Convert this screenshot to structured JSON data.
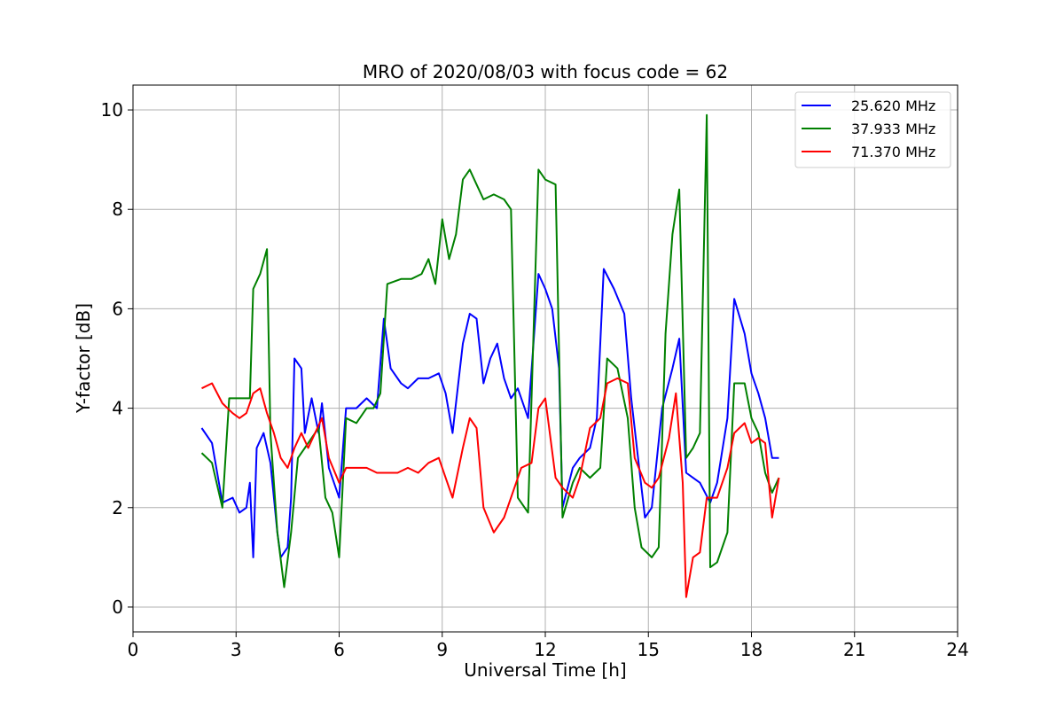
{
  "chart_data": {
    "type": "line",
    "title": "MRO of 2020/08/03 with focus code = 62",
    "xlabel": "Universal Time [h]",
    "ylabel": "Y-factor [dB]",
    "xlim": [
      0,
      24
    ],
    "ylim": [
      -0.5,
      10.5
    ],
    "xticks": [
      0,
      3,
      6,
      9,
      12,
      15,
      18,
      21,
      24
    ],
    "yticks": [
      0,
      2,
      4,
      6,
      8,
      10
    ],
    "grid": true,
    "legend_position": "top-right",
    "series": [
      {
        "name": "25.620 MHz",
        "color": "#0000ff",
        "points": [
          [
            2.0,
            3.6
          ],
          [
            2.3,
            3.3
          ],
          [
            2.6,
            2.1
          ],
          [
            2.9,
            2.2
          ],
          [
            3.1,
            1.9
          ],
          [
            3.3,
            2.0
          ],
          [
            3.4,
            2.5
          ],
          [
            3.5,
            1.0
          ],
          [
            3.6,
            3.2
          ],
          [
            3.8,
            3.5
          ],
          [
            4.0,
            2.9
          ],
          [
            4.2,
            1.5
          ],
          [
            4.3,
            1.0
          ],
          [
            4.5,
            1.2
          ],
          [
            4.6,
            2.2
          ],
          [
            4.7,
            5.0
          ],
          [
            4.9,
            4.8
          ],
          [
            5.0,
            3.5
          ],
          [
            5.2,
            4.2
          ],
          [
            5.4,
            3.5
          ],
          [
            5.5,
            4.1
          ],
          [
            5.7,
            2.8
          ],
          [
            6.0,
            2.2
          ],
          [
            6.2,
            4.0
          ],
          [
            6.5,
            4.0
          ],
          [
            6.8,
            4.2
          ],
          [
            7.1,
            4.0
          ],
          [
            7.3,
            5.8
          ],
          [
            7.5,
            4.8
          ],
          [
            7.8,
            4.5
          ],
          [
            8.0,
            4.4
          ],
          [
            8.3,
            4.6
          ],
          [
            8.6,
            4.6
          ],
          [
            8.9,
            4.7
          ],
          [
            9.1,
            4.3
          ],
          [
            9.3,
            3.5
          ],
          [
            9.6,
            5.3
          ],
          [
            9.8,
            5.9
          ],
          [
            10.0,
            5.8
          ],
          [
            10.2,
            4.5
          ],
          [
            10.4,
            5.0
          ],
          [
            10.6,
            5.3
          ],
          [
            10.8,
            4.6
          ],
          [
            11.0,
            4.2
          ],
          [
            11.2,
            4.4
          ],
          [
            11.5,
            3.8
          ],
          [
            11.8,
            6.7
          ],
          [
            12.0,
            6.4
          ],
          [
            12.2,
            6.0
          ],
          [
            12.4,
            4.8
          ],
          [
            12.5,
            2.0
          ],
          [
            12.8,
            2.8
          ],
          [
            13.0,
            3.0
          ],
          [
            13.3,
            3.2
          ],
          [
            13.5,
            3.8
          ],
          [
            13.7,
            6.8
          ],
          [
            14.0,
            6.4
          ],
          [
            14.3,
            5.9
          ],
          [
            14.5,
            4.2
          ],
          [
            14.7,
            3.0
          ],
          [
            14.9,
            1.8
          ],
          [
            15.1,
            2.0
          ],
          [
            15.4,
            4.0
          ],
          [
            15.7,
            4.8
          ],
          [
            15.9,
            5.4
          ],
          [
            16.1,
            2.7
          ],
          [
            16.3,
            2.6
          ],
          [
            16.5,
            2.5
          ],
          [
            16.8,
            2.1
          ],
          [
            17.0,
            2.5
          ],
          [
            17.3,
            3.8
          ],
          [
            17.5,
            6.2
          ],
          [
            17.8,
            5.5
          ],
          [
            18.0,
            4.7
          ],
          [
            18.2,
            4.3
          ],
          [
            18.4,
            3.8
          ],
          [
            18.6,
            3.0
          ],
          [
            18.8,
            3.0
          ]
        ]
      },
      {
        "name": "37.933 MHz",
        "color": "#008000",
        "points": [
          [
            2.0,
            3.1
          ],
          [
            2.3,
            2.9
          ],
          [
            2.6,
            2.0
          ],
          [
            2.8,
            4.2
          ],
          [
            3.1,
            4.2
          ],
          [
            3.4,
            4.2
          ],
          [
            3.5,
            6.4
          ],
          [
            3.7,
            6.7
          ],
          [
            3.9,
            7.2
          ],
          [
            4.0,
            3.5
          ],
          [
            4.2,
            1.5
          ],
          [
            4.4,
            0.4
          ],
          [
            4.6,
            1.5
          ],
          [
            4.8,
            3.0
          ],
          [
            5.0,
            3.2
          ],
          [
            5.2,
            3.4
          ],
          [
            5.4,
            3.6
          ],
          [
            5.6,
            2.2
          ],
          [
            5.8,
            1.9
          ],
          [
            6.0,
            1.0
          ],
          [
            6.2,
            3.8
          ],
          [
            6.5,
            3.7
          ],
          [
            6.8,
            4.0
          ],
          [
            7.0,
            4.0
          ],
          [
            7.2,
            4.3
          ],
          [
            7.4,
            6.5
          ],
          [
            7.8,
            6.6
          ],
          [
            8.1,
            6.6
          ],
          [
            8.4,
            6.7
          ],
          [
            8.6,
            7.0
          ],
          [
            8.8,
            6.5
          ],
          [
            9.0,
            7.8
          ],
          [
            9.2,
            7.0
          ],
          [
            9.4,
            7.5
          ],
          [
            9.6,
            8.6
          ],
          [
            9.8,
            8.8
          ],
          [
            10.0,
            8.5
          ],
          [
            10.2,
            8.2
          ],
          [
            10.5,
            8.3
          ],
          [
            10.8,
            8.2
          ],
          [
            11.0,
            8.0
          ],
          [
            11.2,
            2.2
          ],
          [
            11.5,
            1.9
          ],
          [
            11.8,
            8.8
          ],
          [
            12.0,
            8.6
          ],
          [
            12.3,
            8.5
          ],
          [
            12.5,
            1.8
          ],
          [
            12.8,
            2.5
          ],
          [
            13.0,
            2.8
          ],
          [
            13.3,
            2.6
          ],
          [
            13.6,
            2.8
          ],
          [
            13.8,
            5.0
          ],
          [
            14.1,
            4.8
          ],
          [
            14.4,
            3.8
          ],
          [
            14.6,
            2.0
          ],
          [
            14.8,
            1.2
          ],
          [
            15.1,
            1.0
          ],
          [
            15.3,
            1.2
          ],
          [
            15.5,
            5.5
          ],
          [
            15.7,
            7.5
          ],
          [
            15.9,
            8.4
          ],
          [
            16.1,
            3.0
          ],
          [
            16.3,
            3.2
          ],
          [
            16.5,
            3.5
          ],
          [
            16.7,
            9.9
          ],
          [
            16.8,
            0.8
          ],
          [
            17.0,
            0.9
          ],
          [
            17.3,
            1.5
          ],
          [
            17.5,
            4.5
          ],
          [
            17.8,
            4.5
          ],
          [
            18.0,
            3.8
          ],
          [
            18.2,
            3.5
          ],
          [
            18.4,
            2.7
          ],
          [
            18.6,
            2.3
          ],
          [
            18.8,
            2.6
          ]
        ]
      },
      {
        "name": "71.370 MHz",
        "color": "#ff0000",
        "points": [
          [
            2.0,
            4.4
          ],
          [
            2.3,
            4.5
          ],
          [
            2.6,
            4.1
          ],
          [
            2.9,
            3.9
          ],
          [
            3.1,
            3.8
          ],
          [
            3.3,
            3.9
          ],
          [
            3.5,
            4.3
          ],
          [
            3.7,
            4.4
          ],
          [
            3.9,
            3.9
          ],
          [
            4.1,
            3.5
          ],
          [
            4.3,
            3.0
          ],
          [
            4.5,
            2.8
          ],
          [
            4.7,
            3.2
          ],
          [
            4.9,
            3.5
          ],
          [
            5.1,
            3.2
          ],
          [
            5.3,
            3.5
          ],
          [
            5.5,
            3.8
          ],
          [
            5.7,
            3.0
          ],
          [
            6.0,
            2.5
          ],
          [
            6.2,
            2.8
          ],
          [
            6.5,
            2.8
          ],
          [
            6.8,
            2.8
          ],
          [
            7.1,
            2.7
          ],
          [
            7.4,
            2.7
          ],
          [
            7.7,
            2.7
          ],
          [
            8.0,
            2.8
          ],
          [
            8.3,
            2.7
          ],
          [
            8.6,
            2.9
          ],
          [
            8.9,
            3.0
          ],
          [
            9.1,
            2.6
          ],
          [
            9.3,
            2.2
          ],
          [
            9.6,
            3.2
          ],
          [
            9.8,
            3.8
          ],
          [
            10.0,
            3.6
          ],
          [
            10.2,
            2.0
          ],
          [
            10.5,
            1.5
          ],
          [
            10.8,
            1.8
          ],
          [
            11.0,
            2.2
          ],
          [
            11.3,
            2.8
          ],
          [
            11.6,
            2.9
          ],
          [
            11.8,
            4.0
          ],
          [
            12.0,
            4.2
          ],
          [
            12.3,
            2.6
          ],
          [
            12.5,
            2.4
          ],
          [
            12.8,
            2.2
          ],
          [
            13.0,
            2.6
          ],
          [
            13.3,
            3.6
          ],
          [
            13.6,
            3.8
          ],
          [
            13.8,
            4.5
          ],
          [
            14.1,
            4.6
          ],
          [
            14.4,
            4.5
          ],
          [
            14.6,
            3.0
          ],
          [
            14.9,
            2.5
          ],
          [
            15.1,
            2.4
          ],
          [
            15.3,
            2.6
          ],
          [
            15.6,
            3.4
          ],
          [
            15.8,
            4.3
          ],
          [
            16.0,
            2.5
          ],
          [
            16.1,
            0.2
          ],
          [
            16.3,
            1.0
          ],
          [
            16.5,
            1.1
          ],
          [
            16.7,
            2.2
          ],
          [
            17.0,
            2.2
          ],
          [
            17.3,
            2.8
          ],
          [
            17.5,
            3.5
          ],
          [
            17.8,
            3.7
          ],
          [
            18.0,
            3.3
          ],
          [
            18.2,
            3.4
          ],
          [
            18.4,
            3.3
          ],
          [
            18.6,
            1.8
          ],
          [
            18.8,
            2.6
          ]
        ]
      }
    ]
  }
}
